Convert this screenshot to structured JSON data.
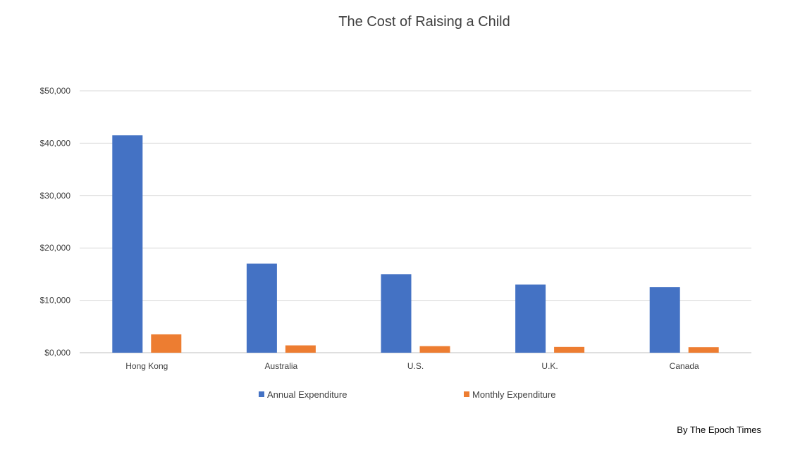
{
  "chart_data": {
    "type": "bar",
    "title": "The Cost of Raising a Child",
    "categories": [
      "Hong Kong",
      "Australia",
      "U.S.",
      "U.K.",
      "Canada"
    ],
    "series": [
      {
        "name": "Annual Expenditure",
        "color": "#4472C4",
        "values": [
          41500,
          17000,
          15000,
          13000,
          12500
        ]
      },
      {
        "name": "Monthly Expenditure",
        "color": "#ED7D31",
        "values": [
          3500,
          1400,
          1250,
          1100,
          1050
        ]
      }
    ],
    "ylim": [
      0,
      50000
    ],
    "yticks": [
      0,
      10000,
      20000,
      30000,
      40000,
      50000
    ],
    "ytick_labels": [
      "$0,000",
      "$10,000",
      "$20,000",
      "$30,000",
      "$40,000",
      "$50,000"
    ],
    "xlabel": "",
    "ylabel": "",
    "grid": true,
    "legend_position": "bottom"
  },
  "credit": "By The Epoch Times"
}
